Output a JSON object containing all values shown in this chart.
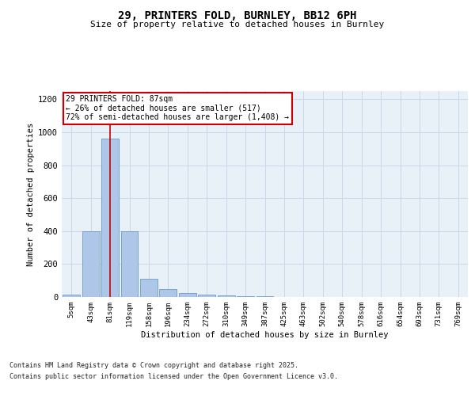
{
  "title1": "29, PRINTERS FOLD, BURNLEY, BB12 6PH",
  "title2": "Size of property relative to detached houses in Burnley",
  "xlabel": "Distribution of detached houses by size in Burnley",
  "ylabel": "Number of detached properties",
  "bins": [
    "5sqm",
    "43sqm",
    "81sqm",
    "119sqm",
    "158sqm",
    "196sqm",
    "234sqm",
    "272sqm",
    "310sqm",
    "349sqm",
    "387sqm",
    "425sqm",
    "463sqm",
    "502sqm",
    "540sqm",
    "578sqm",
    "616sqm",
    "654sqm",
    "693sqm",
    "731sqm",
    "769sqm"
  ],
  "values": [
    15,
    400,
    960,
    400,
    110,
    50,
    22,
    15,
    10,
    5,
    5,
    0,
    0,
    0,
    0,
    0,
    0,
    0,
    0,
    0,
    0
  ],
  "bar_color": "#aec6e8",
  "bar_edge_color": "#5a8fc0",
  "property_line_x": 2,
  "annotation_text": "29 PRINTERS FOLD: 87sqm\n← 26% of detached houses are smaller (517)\n72% of semi-detached houses are larger (1,408) →",
  "annotation_box_color": "#cc0000",
  "ylim": [
    0,
    1250
  ],
  "yticks": [
    0,
    200,
    400,
    600,
    800,
    1000,
    1200
  ],
  "grid_color": "#c8d8e8",
  "bg_color": "#e8f0f8",
  "footnote1": "Contains HM Land Registry data © Crown copyright and database right 2025.",
  "footnote2": "Contains public sector information licensed under the Open Government Licence v3.0."
}
